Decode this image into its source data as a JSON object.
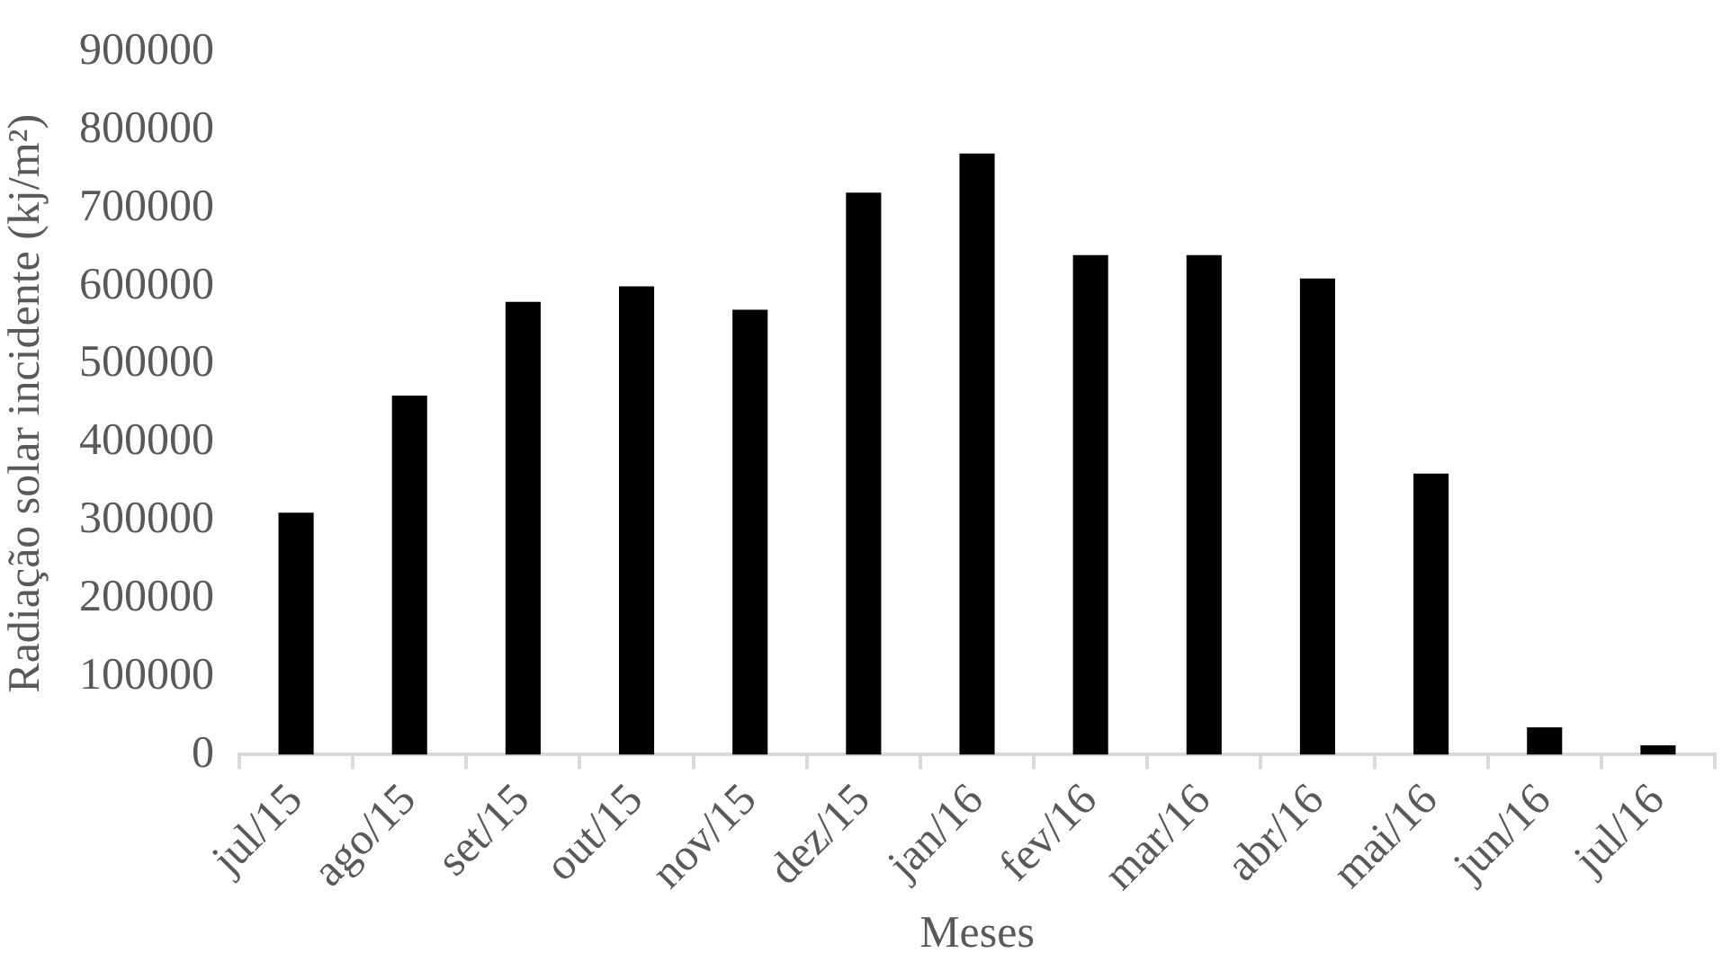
{
  "chart_data": {
    "type": "bar",
    "xlabel": "Meses",
    "ylabel": "Radiação solar incidente (kj/m²)",
    "categories": [
      "jul/15",
      "ago/15",
      "set/15",
      "out/15",
      "nov/15",
      "dez/15",
      "jan/16",
      "fev/16",
      "mar/16",
      "abr/16",
      "mai/16",
      "jun/16",
      "jul/16"
    ],
    "values": [
      310000,
      460000,
      580000,
      600000,
      570000,
      720000,
      770000,
      640000,
      640000,
      610000,
      360000,
      35000,
      12000
    ],
    "color": "#000000",
    "ylim": [
      0,
      900000
    ],
    "yticks": [
      0,
      100000,
      200000,
      300000,
      400000,
      500000,
      600000,
      700000,
      800000,
      900000
    ],
    "grid": false,
    "legend": false
  }
}
